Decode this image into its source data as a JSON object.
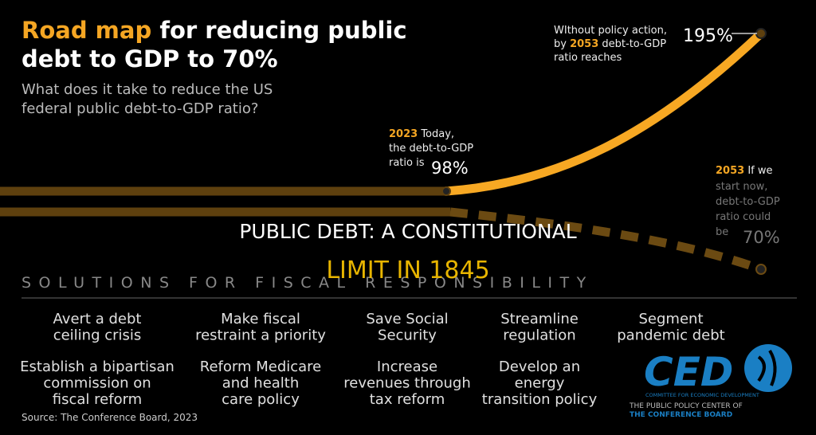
{
  "header": {
    "title_highlight": "Road map",
    "title_line1_rest": "for reducing public",
    "title_line2": "debt to GDP to 70%",
    "subtitle": [
      "What does it take to reduce the US",
      "federal public debt-to-GDP ratio?"
    ]
  },
  "annotations": {
    "today": {
      "year": "2023",
      "lines": [
        "Today,",
        "the debt-to-GDP",
        "ratio is"
      ],
      "value": "98%"
    },
    "no_action": {
      "lines": [
        "WIthout policy action,",
        "by",
        "debt-to-GDP",
        "ratio reaches"
      ],
      "year": "2053",
      "value": "195%"
    },
    "start_now": {
      "year": "2053",
      "lines": [
        "If we",
        "start now,",
        "debt-to-GDP",
        "ratio could",
        "be"
      ],
      "value": "70%"
    }
  },
  "overlay": [
    "PUBLIC DEBT: A CONSTITUTIONAL",
    "LIMIT IN 1845"
  ],
  "section_title": "SOLUTIONS FOR FISCAL RESPONSIBILITY",
  "solutions": [
    [
      [
        "Avert a debt",
        "ceiling crisis"
      ],
      [
        "Make fiscal",
        "restraint a priority"
      ],
      [
        "Save Social",
        "Security"
      ],
      [
        "Streamline",
        "regulation"
      ],
      [
        "Segment",
        "pandemic debt"
      ]
    ],
    [
      [
        "Establish a bipartisan",
        "commission on",
        "fiscal reform"
      ],
      [
        "Reform Medicare",
        "and health",
        "care policy"
      ],
      [
        "Increase",
        "revenues through",
        "tax reform"
      ],
      [
        "Develop an",
        "energy",
        "transition policy"
      ]
    ]
  ],
  "logo": {
    "name": "CED",
    "lines": [
      "COMMITTEE FOR ECONOMIC DEVELOPMENT",
      "THE PUBLIC POLICY CENTER OF",
      "THE CONFERENCE BOARD"
    ]
  },
  "source": "Source: The Conference Board, 2023"
}
